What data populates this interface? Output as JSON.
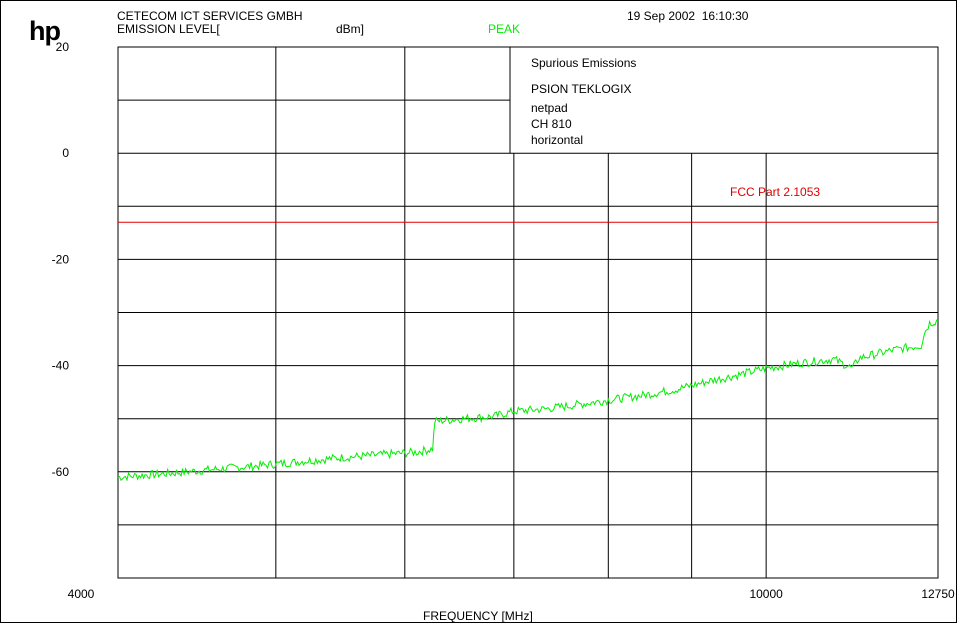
{
  "header": {
    "logo": "hp",
    "company": "CETECOM ICT SERVICES GMBH",
    "level_label": "EMISSION LEVEL[",
    "unit": "dBm]",
    "detector": "PEAK",
    "timestamp": "19 Sep 2002  16:10:30"
  },
  "info_box": {
    "lines": [
      "Spurious Emissions",
      "PSION TEKLOGIX",
      "netpad",
      "CH 810",
      "horizontal"
    ]
  },
  "colors": {
    "trace": "#00ee00",
    "limit": "#e00000",
    "grid": "#000000"
  },
  "chart_data": {
    "type": "line",
    "xlabel": "FREQUENCY [MHz]",
    "ylabel": "EMISSION LEVEL [dBm]",
    "x_scale": "log",
    "xlim": [
      4000,
      12750
    ],
    "ylim": [
      -80,
      20
    ],
    "y_ticks": [
      20,
      0,
      -20,
      -40,
      -60
    ],
    "x_ticks": [
      4000,
      10000,
      12750
    ],
    "grid": true,
    "limit_line": {
      "name": "FCC Part 2.1053",
      "value": -13
    },
    "series": [
      {
        "name": "PEAK",
        "points": [
          [
            4000,
            -61.0
          ],
          [
            4300,
            -60.3
          ],
          [
            4600,
            -59.5
          ],
          [
            4900,
            -58.8
          ],
          [
            5200,
            -58.0
          ],
          [
            5500,
            -57.3
          ],
          [
            5800,
            -56.8
          ],
          [
            6100,
            -56.3
          ],
          [
            6240,
            -55.7
          ],
          [
            6260,
            -50.5
          ],
          [
            6500,
            -50.0
          ],
          [
            6800,
            -49.6
          ],
          [
            7000,
            -48.6
          ],
          [
            7300,
            -48.2
          ],
          [
            7600,
            -47.5
          ],
          [
            8000,
            -46.5
          ],
          [
            8400,
            -45.6
          ],
          [
            8800,
            -44.5
          ],
          [
            9200,
            -43.0
          ],
          [
            9600,
            -41.8
          ],
          [
            10000,
            -40.5
          ],
          [
            10500,
            -39.5
          ],
          [
            11000,
            -38.8
          ],
          [
            11300,
            -40.5
          ],
          [
            11400,
            -38.6
          ],
          [
            12000,
            -37.0
          ],
          [
            12450,
            -36.2
          ],
          [
            12500,
            -34.0
          ],
          [
            12600,
            -32.0
          ],
          [
            12750,
            -31.5
          ]
        ]
      }
    ]
  }
}
